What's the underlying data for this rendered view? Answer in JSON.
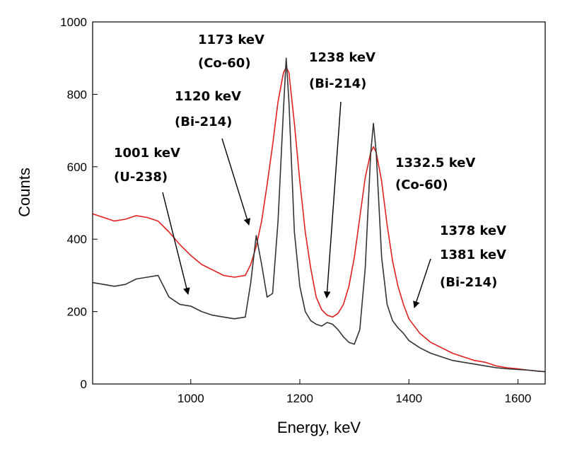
{
  "chart_data": {
    "type": "line",
    "xlabel": "Energy, keV",
    "ylabel": "Counts",
    "xlim": [
      820,
      1650
    ],
    "ylim": [
      0,
      1000
    ],
    "x_ticks": [
      1000,
      1200,
      1400,
      1600
    ],
    "y_ticks": [
      0,
      200,
      400,
      600,
      800,
      1000
    ],
    "grid": false,
    "series": [
      {
        "color": "#e02020",
        "x": [
          820,
          840,
          860,
          880,
          900,
          920,
          940,
          960,
          980,
          1000,
          1020,
          1040,
          1060,
          1080,
          1100,
          1110,
          1120,
          1130,
          1140,
          1150,
          1160,
          1170,
          1175,
          1180,
          1190,
          1200,
          1210,
          1220,
          1230,
          1240,
          1250,
          1260,
          1270,
          1280,
          1290,
          1300,
          1310,
          1320,
          1330,
          1335,
          1340,
          1350,
          1360,
          1370,
          1380,
          1390,
          1400,
          1420,
          1440,
          1460,
          1480,
          1500,
          1520,
          1540,
          1560,
          1580,
          1600,
          1620,
          1640,
          1650
        ],
        "y": [
          470,
          460,
          450,
          455,
          465,
          460,
          450,
          420,
          385,
          355,
          330,
          315,
          300,
          295,
          300,
          330,
          380,
          450,
          550,
          660,
          780,
          860,
          875,
          860,
          720,
          560,
          420,
          320,
          240,
          205,
          190,
          185,
          195,
          220,
          270,
          350,
          460,
          570,
          640,
          655,
          640,
          560,
          440,
          340,
          270,
          220,
          180,
          140,
          115,
          100,
          85,
          75,
          65,
          60,
          50,
          45,
          42,
          38,
          35,
          34
        ]
      },
      {
        "color": "#333333",
        "x": [
          820,
          840,
          860,
          880,
          900,
          920,
          940,
          960,
          980,
          1000,
          1020,
          1040,
          1060,
          1080,
          1100,
          1110,
          1120,
          1130,
          1140,
          1150,
          1160,
          1170,
          1175,
          1180,
          1190,
          1200,
          1210,
          1220,
          1230,
          1240,
          1250,
          1260,
          1270,
          1280,
          1290,
          1300,
          1310,
          1320,
          1330,
          1335,
          1340,
          1350,
          1360,
          1370,
          1380,
          1390,
          1400,
          1420,
          1440,
          1460,
          1480,
          1500,
          1520,
          1540,
          1560,
          1580,
          1600,
          1620,
          1640,
          1650
        ],
        "y": [
          280,
          275,
          270,
          275,
          290,
          295,
          300,
          240,
          220,
          215,
          200,
          190,
          185,
          180,
          185,
          280,
          410,
          330,
          240,
          250,
          450,
          760,
          900,
          780,
          420,
          270,
          200,
          175,
          165,
          160,
          170,
          165,
          150,
          130,
          115,
          110,
          150,
          320,
          640,
          720,
          640,
          350,
          220,
          175,
          155,
          140,
          120,
          100,
          85,
          75,
          65,
          60,
          55,
          50,
          45,
          42,
          40,
          38,
          35,
          34
        ]
      }
    ],
    "annotations": [
      {
        "lines": [
          "1173 keV",
          "(Co-60)"
        ]
      },
      {
        "lines": [
          "1238 keV",
          "(Bi-214)"
        ]
      },
      {
        "lines": [
          "1120 keV",
          "(Bi-214)"
        ]
      },
      {
        "lines": [
          "1001 keV",
          "(U-238)"
        ]
      },
      {
        "lines": [
          "1332.5 keV",
          "(Co-60)"
        ]
      },
      {
        "lines": [
          "1378 keV",
          "1381 keV",
          "(Bi-214)"
        ]
      }
    ]
  }
}
